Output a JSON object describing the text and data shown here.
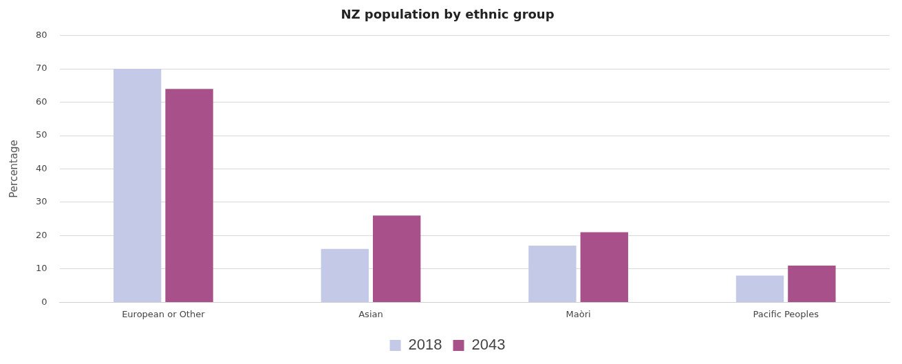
{
  "chart_data": {
    "type": "bar",
    "title": "NZ population by ethnic group",
    "ylabel": "Percentage",
    "categories": [
      "European or Other",
      "Asian",
      "Maòri",
      "Pacific Peoples"
    ],
    "series": [
      {
        "name": "2018",
        "color": "#c5c9e8",
        "values": [
          70,
          16,
          17,
          8
        ]
      },
      {
        "name": "2043",
        "color": "#a8508a",
        "values": [
          64,
          26,
          21,
          11
        ]
      }
    ],
    "ylim": [
      0,
      80
    ],
    "yticks": [
      0,
      10,
      20,
      30,
      40,
      50,
      60,
      70,
      80
    ],
    "grid": "y",
    "legend": "bottom"
  }
}
